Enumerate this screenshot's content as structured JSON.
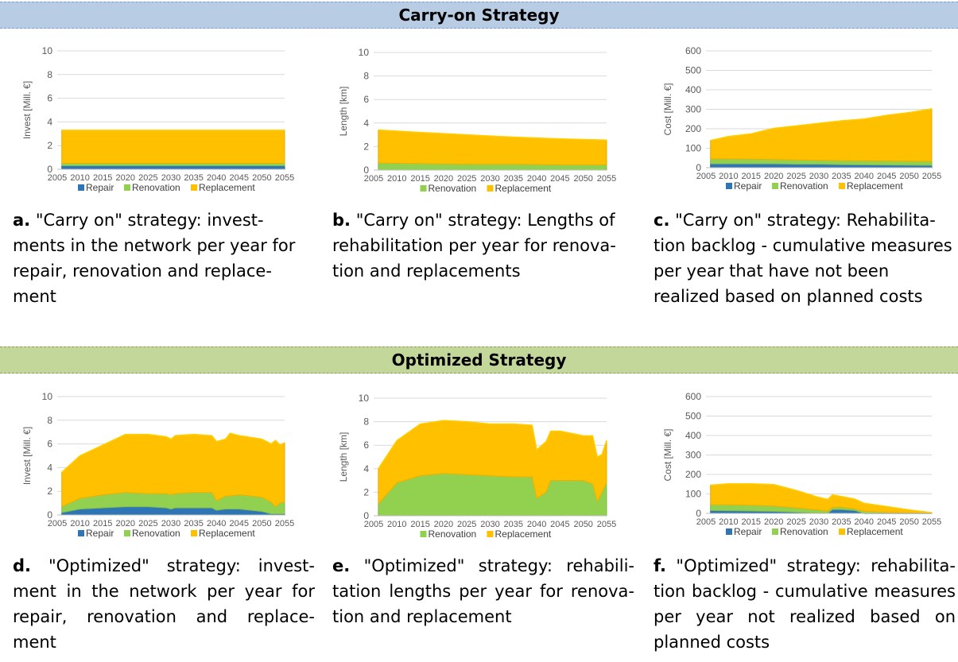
{
  "bands": {
    "carry_on": "Carry-on Strategy",
    "optimized": "Optimized Strategy"
  },
  "captions": [
    {
      "letter": "a.",
      "text": "\"Carry on\" strategy: invest-ments in the network per year for repair, renovation and replace-ment"
    },
    {
      "letter": "b.",
      "text": "\"Carry on\" strategy: Lengths of rehabilitation per year for renova-tion and replacements"
    },
    {
      "letter": "c.",
      "text": "\"Carry on\" strategy: Rehabilita-tion backlog - cumulative measures per year that have not been realized based on planned costs"
    },
    {
      "letter": "d.",
      "text": "\"Optimized\" strategy: invest-ment in the network per year for repair, renovation and replace-ment"
    },
    {
      "letter": "e.",
      "text": "\"Optimized\" strategy: rehabili-tation lengths per year for renova-tion and replacement"
    },
    {
      "letter": "f.",
      "text": "\"Optimized\" strategy: rehabilita-tion backlog - cumulative measures per year not realized based on planned costs"
    }
  ],
  "colors": {
    "Repair": "#2e75b6",
    "Renovation": "#92d050",
    "Replacement": "#ffc000"
  },
  "chart_data": [
    {
      "type": "area",
      "id": "a",
      "ylabel": "Invest [Mill. €]",
      "ylim": [
        0,
        10
      ],
      "yticks": [
        0,
        2,
        4,
        6,
        8,
        10
      ],
      "xlim": [
        2005,
        2055
      ],
      "xticks": [
        2005,
        2010,
        2015,
        2020,
        2025,
        2030,
        2035,
        2040,
        2045,
        2050,
        2055
      ],
      "x": [
        2006,
        2055
      ],
      "series": [
        {
          "name": "Repair",
          "values": [
            0.3,
            0.3
          ]
        },
        {
          "name": "Renovation",
          "values": [
            0.2,
            0.2
          ]
        },
        {
          "name": "Replacement",
          "values": [
            2.8,
            2.8
          ]
        }
      ]
    },
    {
      "type": "area",
      "id": "b",
      "ylabel": "Length [km]",
      "ylim": [
        0,
        10
      ],
      "yticks": [
        0,
        2,
        4,
        6,
        8,
        10
      ],
      "xlim": [
        2005,
        2055
      ],
      "xticks": [
        2005,
        2010,
        2015,
        2020,
        2025,
        2030,
        2035,
        2040,
        2045,
        2050,
        2055
      ],
      "x": [
        2006,
        2015,
        2025,
        2035,
        2045,
        2055
      ],
      "series": [
        {
          "name": "Renovation",
          "values": [
            0.6,
            0.55,
            0.5,
            0.5,
            0.45,
            0.45
          ]
        },
        {
          "name": "Replacement",
          "values": [
            2.8,
            2.65,
            2.5,
            2.3,
            2.2,
            2.1
          ]
        }
      ]
    },
    {
      "type": "area",
      "id": "c",
      "ylabel": "Cost [Mill. €]",
      "ylim": [
        0,
        600
      ],
      "yticks": [
        0,
        100,
        200,
        300,
        400,
        500,
        600
      ],
      "xlim": [
        2005,
        2055
      ],
      "xticks": [
        2005,
        2010,
        2015,
        2020,
        2025,
        2030,
        2035,
        2040,
        2045,
        2050,
        2055
      ],
      "x": [
        2006,
        2010,
        2015,
        2020,
        2025,
        2030,
        2035,
        2040,
        2045,
        2050,
        2055
      ],
      "series": [
        {
          "name": "Repair",
          "values": [
            20,
            20,
            20,
            20,
            18,
            18,
            16,
            15,
            14,
            13,
            12
          ]
        },
        {
          "name": "Renovation",
          "values": [
            25,
            25,
            24,
            22,
            22,
            20,
            20,
            20,
            20,
            20,
            20
          ]
        },
        {
          "name": "Replacement",
          "values": [
            95,
            115,
            130,
            160,
            175,
            190,
            205,
            215,
            235,
            250,
            270
          ]
        }
      ]
    },
    {
      "type": "area",
      "id": "d",
      "ylabel": "Invest [Mill. €]",
      "ylim": [
        0,
        10
      ],
      "yticks": [
        0,
        2,
        4,
        6,
        8,
        10
      ],
      "xlim": [
        2005,
        2055
      ],
      "xticks": [
        2005,
        2010,
        2015,
        2020,
        2025,
        2030,
        2035,
        2040,
        2045,
        2050,
        2055
      ],
      "x": [
        2006,
        2010,
        2015,
        2020,
        2025,
        2029,
        2030,
        2031,
        2035,
        2039,
        2040,
        2042,
        2043,
        2045,
        2050,
        2052,
        2053,
        2054,
        2055
      ],
      "series": [
        {
          "name": "Repair",
          "values": [
            0.2,
            0.5,
            0.6,
            0.7,
            0.7,
            0.6,
            0.5,
            0.6,
            0.6,
            0.6,
            0.4,
            0.5,
            0.5,
            0.5,
            0.3,
            0.1,
            0.1,
            0.1,
            0.1
          ]
        },
        {
          "name": "Renovation",
          "values": [
            0.5,
            0.9,
            1.1,
            1.2,
            1.1,
            1.2,
            1.2,
            1.2,
            1.3,
            1.3,
            0.8,
            1.1,
            1.1,
            1.2,
            1.2,
            1.0,
            0.6,
            0.9,
            1.0
          ]
        },
        {
          "name": "Replacement",
          "values": [
            2.9,
            3.6,
            4.2,
            4.9,
            5.0,
            4.8,
            4.7,
            4.9,
            4.9,
            4.8,
            5.0,
            4.8,
            5.3,
            5.0,
            4.9,
            4.9,
            5.6,
            4.9,
            5.0
          ]
        }
      ]
    },
    {
      "type": "area",
      "id": "e",
      "ylabel": "Length [km]",
      "ylim": [
        0,
        10
      ],
      "yticks": [
        0,
        2,
        4,
        6,
        8,
        10
      ],
      "xlim": [
        2005,
        2055
      ],
      "xticks": [
        2005,
        2010,
        2015,
        2020,
        2025,
        2030,
        2035,
        2040,
        2045,
        2050,
        2055
      ],
      "x": [
        2006,
        2010,
        2015,
        2020,
        2025,
        2030,
        2035,
        2039,
        2040,
        2042,
        2043,
        2045,
        2050,
        2052,
        2053,
        2054,
        2055
      ],
      "series": [
        {
          "name": "Renovation",
          "values": [
            1.0,
            2.8,
            3.4,
            3.6,
            3.5,
            3.4,
            3.3,
            3.3,
            1.5,
            2.0,
            3.0,
            3.0,
            3.0,
            2.7,
            1.2,
            2.0,
            2.8
          ]
        },
        {
          "name": "Replacement",
          "values": [
            3.0,
            3.6,
            4.4,
            4.5,
            4.5,
            4.4,
            4.5,
            4.4,
            4.1,
            4.3,
            4.2,
            4.2,
            3.8,
            4.1,
            3.8,
            3.2,
            3.6
          ]
        }
      ]
    },
    {
      "type": "area",
      "id": "f",
      "ylabel": "Cost [Mill. €]",
      "ylim": [
        0,
        600
      ],
      "yticks": [
        0,
        100,
        200,
        300,
        400,
        500,
        600
      ],
      "xlim": [
        2005,
        2055
      ],
      "xticks": [
        2005,
        2010,
        2015,
        2020,
        2025,
        2030,
        2035,
        2040,
        2045,
        2050,
        2055
      ],
      "x": [
        2006,
        2010,
        2015,
        2020,
        2025,
        2030,
        2032,
        2033,
        2035,
        2038,
        2040,
        2045,
        2050,
        2055
      ],
      "series": [
        {
          "name": "Repair",
          "values": [
            15,
            14,
            12,
            10,
            6,
            2,
            2,
            20,
            20,
            15,
            0,
            0,
            0,
            0
          ]
        },
        {
          "name": "Renovation",
          "values": [
            30,
            30,
            30,
            28,
            22,
            15,
            10,
            10,
            12,
            8,
            10,
            5,
            3,
            1
          ]
        },
        {
          "name": "Replacement",
          "values": [
            100,
            108,
            110,
            110,
            90,
            65,
            60,
            65,
            55,
            50,
            42,
            30,
            15,
            3
          ]
        }
      ]
    }
  ]
}
